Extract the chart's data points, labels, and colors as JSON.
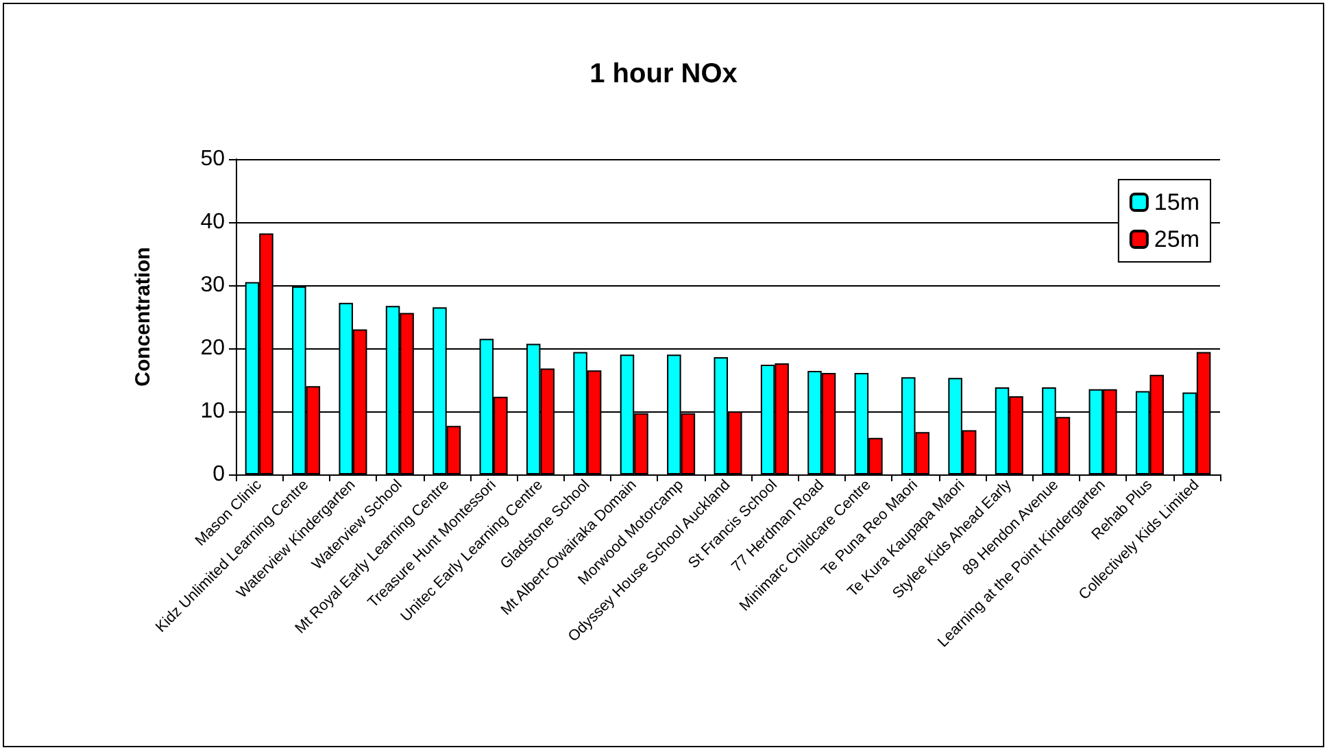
{
  "chart_data": {
    "type": "bar",
    "title": "1 hour NOx",
    "ylabel": "Concentration",
    "categories": [
      "Mason Clinic",
      "Kidz Unlimited Learning Centre",
      "Waterview Kindergarten",
      "Waterview School",
      "Mt Royal Early Learning Centre",
      "Treasure Hunt Montessori",
      "Unitec Early Learning Centre",
      "Gladstone School",
      "Mt Albert-Owairaka Domain",
      "Morwood Motorcamp",
      "Odyssey House School Auckland",
      "St Francis School",
      "77 Herdman Road",
      "Minimarc Childcare Centre",
      "Te Puna Reo Maori",
      "Te Kura Kaupapa Maori",
      "Stylee Kids Ahead Early",
      "89 Hendon Avenue",
      "Learning at the Point Kindergarten",
      "Rehab Plus",
      "Collectively Kids Limited"
    ],
    "series": [
      {
        "name": "15m",
        "color": "#00ffff",
        "values": [
          30.5,
          29.8,
          27.2,
          26.7,
          26.5,
          21.5,
          20.7,
          19.4,
          19.0,
          19.0,
          18.6,
          17.4,
          16.4,
          16.1,
          15.4,
          15.3,
          13.8,
          13.8,
          13.5,
          13.2,
          13.0
        ]
      },
      {
        "name": "25m",
        "color": "#ff0000",
        "values": [
          38.2,
          14.0,
          23.0,
          25.6,
          7.7,
          12.3,
          16.8,
          16.5,
          9.7,
          9.7,
          10.0,
          17.6,
          16.1,
          5.8,
          6.7,
          7.0,
          12.4,
          9.1,
          13.5,
          15.8,
          19.4
        ]
      }
    ],
    "ylim": [
      0,
      50
    ],
    "yticks": [
      0,
      10,
      20,
      30,
      40,
      50
    ],
    "grid": "y",
    "legend": "top right"
  }
}
